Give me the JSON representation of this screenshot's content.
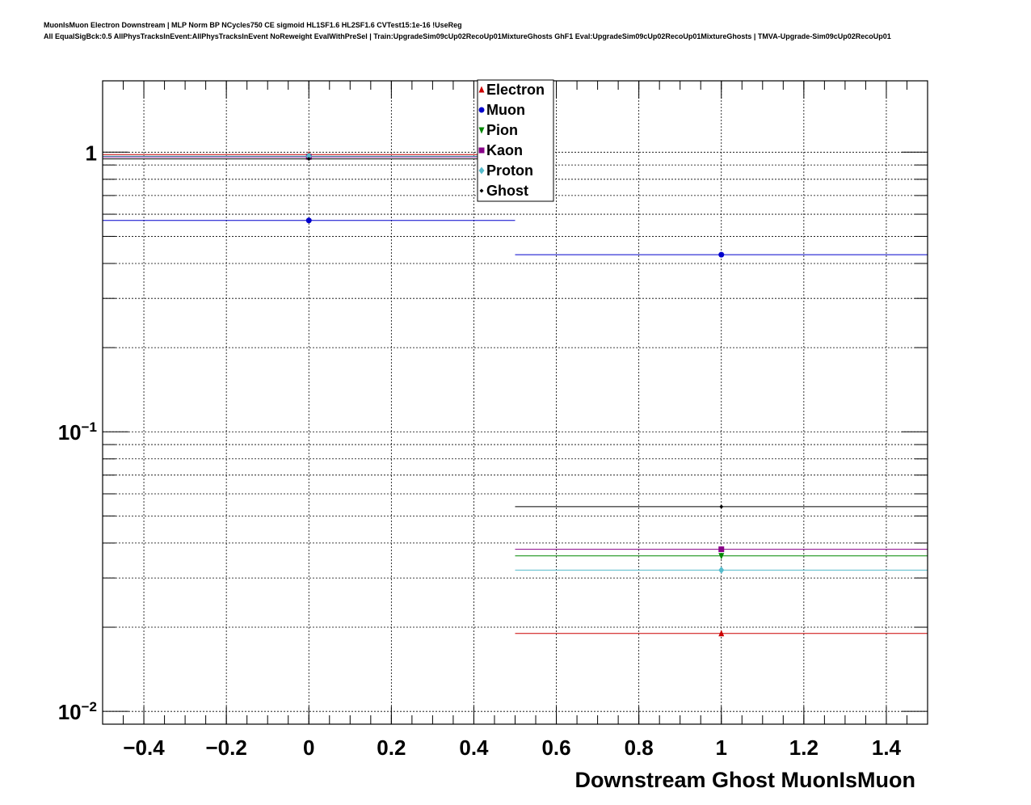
{
  "header": {
    "line1": "MuonIsMuon Electron Downstream | MLP Norm BP NCycles750 CE sigmoid HL1SF1.6 HL2SF1.6 CVTest15:1e-16 !UseReg",
    "line2": "All EqualSigBck:0.5 AllPhysTracksInEvent:AllPhysTracksInEvent NoReweight EvalWithPreSel | Train:UpgradeSim09cUp02RecoUp01MixtureGhosts GhF1 Eval:UpgradeSim09cUp02RecoUp01MixtureGhosts | TMVA-Upgrade-Sim09cUp02RecoUp01"
  },
  "chart_data": {
    "type": "scatter",
    "title": "",
    "xlabel": "Downstream Ghost MuonIsMuon",
    "ylabel": "",
    "xlim": [
      -0.5,
      1.5
    ],
    "ylim": [
      0.009,
      1.8
    ],
    "yscale": "log",
    "grid": true,
    "legend_position": "top-center",
    "x_ticks": [
      -0.4,
      -0.2,
      0,
      0.2,
      0.4,
      0.6,
      0.8,
      1,
      1.2,
      1.4
    ],
    "x_tick_labels": [
      "−0.4",
      "−0.2",
      "0",
      "0.2",
      "0.4",
      "0.6",
      "0.8",
      "1",
      "1.2",
      "1.4"
    ],
    "y_tick_labels": [
      {
        "value": 1,
        "base": "1",
        "exp": ""
      },
      {
        "value": 0.1,
        "base": "10",
        "exp": "−1"
      },
      {
        "value": 0.01,
        "base": "10",
        "exp": "−2"
      }
    ],
    "bins": [
      {
        "center": 0,
        "low": -0.5,
        "high": 0.5
      },
      {
        "center": 1,
        "low": 0.5,
        "high": 1.5
      }
    ],
    "series": [
      {
        "name": "Electron",
        "color": "#cc0000",
        "marker": "triangle-up",
        "values": [
          0.981,
          0.019
        ]
      },
      {
        "name": "Muon",
        "color": "#0000cc",
        "marker": "circle",
        "values": [
          0.57,
          0.43
        ]
      },
      {
        "name": "Pion",
        "color": "#008800",
        "marker": "triangle-down",
        "values": [
          0.964,
          0.036
        ]
      },
      {
        "name": "Kaon",
        "color": "#880088",
        "marker": "square",
        "values": [
          0.962,
          0.038
        ]
      },
      {
        "name": "Proton",
        "color": "#55bbcc",
        "marker": "diamond",
        "values": [
          0.968,
          0.032
        ]
      },
      {
        "name": "Ghost",
        "color": "#000000",
        "marker": "small-diamond",
        "values": [
          0.946,
          0.054
        ]
      }
    ]
  }
}
